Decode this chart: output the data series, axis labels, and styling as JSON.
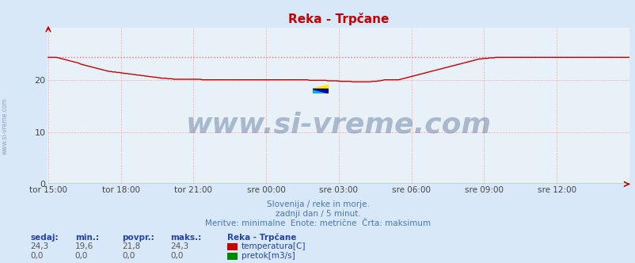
{
  "title": "Reka - Trpčane",
  "bg_color": "#d8e8f8",
  "plot_bg_color": "#e8f0f8",
  "grid_color": "#ffaaaa",
  "x_labels": [
    "tor 15:00",
    "tor 18:00",
    "tor 21:00",
    "sre 00:00",
    "sre 03:00",
    "sre 06:00",
    "sre 09:00",
    "sre 12:00"
  ],
  "x_ticks_norm": [
    0.0,
    0.125,
    0.25,
    0.375,
    0.5,
    0.625,
    0.75,
    0.875
  ],
  "ylim": [
    0,
    30
  ],
  "yticks": [
    0,
    10,
    20
  ],
  "temp_color": "#cc0000",
  "temp_max_color": "#ff6666",
  "flow_color": "#008800",
  "watermark_color": "#1a3a6a",
  "watermark_text": "www.si-vreme.com",
  "watermark_fontsize": 26,
  "subtitle1": "Slovenija / reke in morje.",
  "subtitle2": "zadnji dan / 5 minut.",
  "subtitle3": "Meritve: minimalne  Enote: metrične  Črta: maksimum",
  "subtitle_color": "#4477bb",
  "footer_header_color": "#2244aa",
  "footer_labels": [
    "sedaj:",
    "min.:",
    "povpr.:",
    "maks.:"
  ],
  "footer_station": "Reka - Trpčane",
  "footer_temp_values": [
    "24,3",
    "19,6",
    "21,8",
    "24,3"
  ],
  "footer_flow_values": [
    "0,0",
    "0,0",
    "0,0",
    "0,0"
  ],
  "footer_temp_label": "temperatura[C]",
  "footer_flow_label": "pretok[m3/s]",
  "temp_max": 24.3,
  "temp_data": [
    24.3,
    24.3,
    24.3,
    24.3,
    24.3,
    24.2,
    24.1,
    24.0,
    23.9,
    23.8,
    23.7,
    23.6,
    23.5,
    23.4,
    23.3,
    23.2,
    23.0,
    22.9,
    22.8,
    22.7,
    22.6,
    22.5,
    22.4,
    22.3,
    22.2,
    22.1,
    22.0,
    21.9,
    21.8,
    21.7,
    21.6,
    21.6,
    21.5,
    21.5,
    21.4,
    21.4,
    21.3,
    21.3,
    21.2,
    21.2,
    21.1,
    21.1,
    21.0,
    21.0,
    20.9,
    20.9,
    20.8,
    20.8,
    20.7,
    20.7,
    20.6,
    20.6,
    20.5,
    20.5,
    20.4,
    20.4,
    20.3,
    20.3,
    20.3,
    20.2,
    20.2,
    20.2,
    20.1,
    20.1,
    20.1,
    20.1,
    20.1,
    20.1,
    20.1,
    20.1,
    20.1,
    20.1,
    20.1,
    20.1,
    20.1,
    20.1,
    20.0,
    20.0,
    20.0,
    20.0,
    20.0,
    20.0,
    20.0,
    20.0,
    20.0,
    20.0,
    20.0,
    20.0,
    20.0,
    20.0,
    20.0,
    20.0,
    20.0,
    20.0,
    20.0,
    20.0,
    20.0,
    20.0,
    20.0,
    20.0,
    20.0,
    20.0,
    20.0,
    20.0,
    20.0,
    20.0,
    20.0,
    20.0,
    20.0,
    20.0,
    20.0,
    20.0,
    20.0,
    20.0,
    20.0,
    20.0,
    20.0,
    20.0,
    20.0,
    20.0,
    20.0,
    20.0,
    20.0,
    20.0,
    20.0,
    20.0,
    20.0,
    20.0,
    20.0,
    19.9,
    19.9,
    19.9,
    19.9,
    19.9,
    19.9,
    19.9,
    19.9,
    19.9,
    19.8,
    19.8,
    19.8,
    19.8,
    19.8,
    19.8,
    19.7,
    19.7,
    19.7,
    19.7,
    19.7,
    19.7,
    19.6,
    19.6,
    19.6,
    19.6,
    19.6,
    19.6,
    19.6,
    19.6,
    19.6,
    19.6,
    19.7,
    19.7,
    19.7,
    19.8,
    19.8,
    19.9,
    20.0,
    20.0,
    20.0,
    20.0,
    20.0,
    20.0,
    20.0,
    20.0,
    20.1,
    20.2,
    20.3,
    20.4,
    20.5,
    20.6,
    20.7,
    20.8,
    20.9,
    21.0,
    21.1,
    21.2,
    21.3,
    21.4,
    21.5,
    21.6,
    21.7,
    21.8,
    21.9,
    22.0,
    22.1,
    22.2,
    22.3,
    22.4,
    22.5,
    22.6,
    22.7,
    22.8,
    22.9,
    23.0,
    23.1,
    23.2,
    23.3,
    23.4,
    23.5,
    23.6,
    23.7,
    23.8,
    23.9,
    24.0,
    24.0,
    24.1,
    24.1,
    24.1,
    24.2,
    24.2,
    24.2,
    24.3,
    24.3,
    24.3,
    24.3,
    24.3,
    24.3,
    24.3,
    24.3,
    24.3,
    24.3,
    24.3,
    24.3,
    24.3,
    24.3,
    24.3,
    24.3,
    24.3,
    24.3,
    24.3,
    24.3,
    24.3,
    24.3,
    24.3,
    24.3,
    24.3,
    24.3,
    24.3,
    24.3,
    24.3,
    24.3,
    24.3,
    24.3,
    24.3,
    24.3,
    24.3,
    24.3,
    24.3,
    24.3,
    24.3,
    24.3,
    24.3,
    24.3,
    24.3,
    24.3,
    24.3,
    24.3,
    24.3,
    24.3,
    24.3,
    24.3,
    24.3,
    24.3,
    24.3,
    24.3,
    24.3,
    24.3,
    24.3,
    24.3,
    24.3,
    24.3,
    24.3,
    24.3,
    24.3,
    24.3,
    24.3,
    24.3,
    24.3
  ]
}
